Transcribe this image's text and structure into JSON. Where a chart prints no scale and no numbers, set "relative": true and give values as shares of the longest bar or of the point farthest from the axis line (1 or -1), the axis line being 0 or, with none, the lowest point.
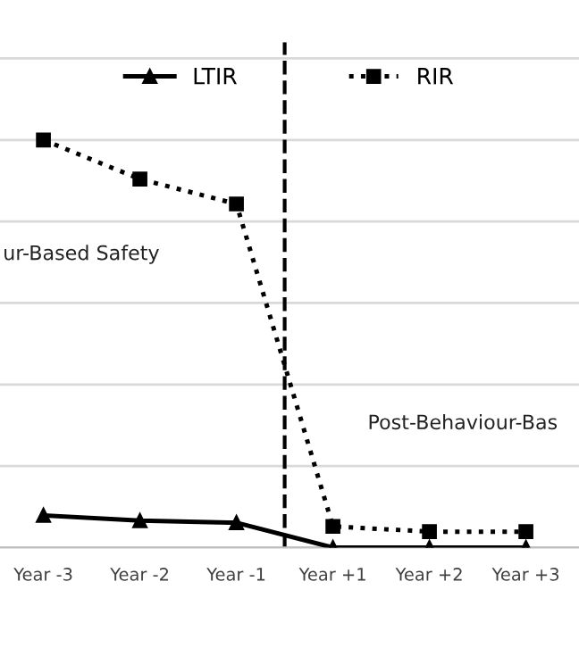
{
  "chart_data": {
    "type": "line",
    "relative": true,
    "grid": "y",
    "legend": "top",
    "categories": [
      "Year -3",
      "Year -2",
      "Year -1",
      "Year +1",
      "Year +2",
      "Year +3"
    ],
    "series": [
      {
        "name": "LTIR",
        "color": "#000000",
        "marker": "triangle",
        "line_style": "solid",
        "values": [
          0.079,
          0.066,
          0.061,
          0,
          0,
          0
        ]
      },
      {
        "name": "RIR",
        "color": "#000000",
        "marker": "square",
        "line_style": "dotted",
        "values": [
          1,
          0.904,
          0.843,
          0.052,
          0.039,
          0.039
        ]
      }
    ],
    "annotations": [
      {
        "text": "ur-Based Safety"
      },
      {
        "text": "Post-Behaviour-Bas"
      }
    ]
  }
}
